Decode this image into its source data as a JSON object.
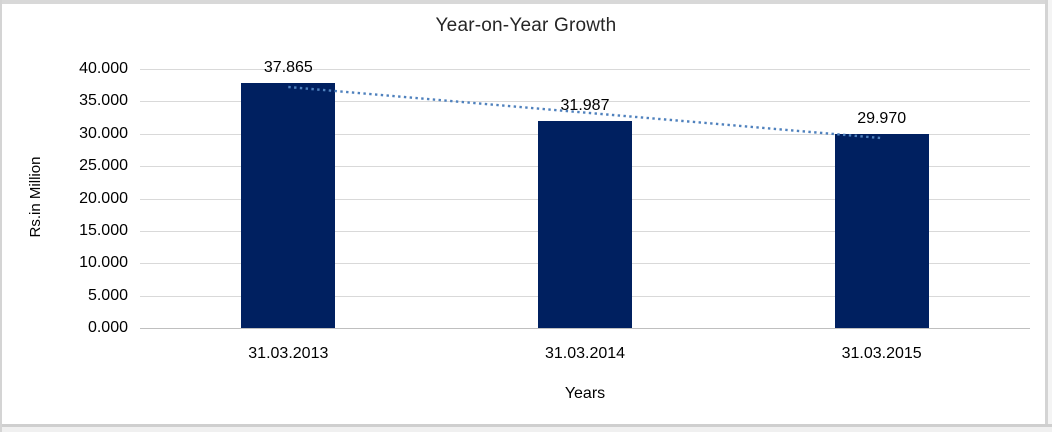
{
  "chart_data": {
    "type": "bar",
    "title": "Year-on-Year Growth",
    "categories": [
      "31.03.2013",
      "31.03.2014",
      "31.03.2015"
    ],
    "values": [
      37.865,
      31.987,
      29.97
    ],
    "data_labels": [
      "37.865",
      "31.987",
      "29.970"
    ],
    "xlabel": "Years",
    "ylabel": "Rs.in Million",
    "ylim": [
      0,
      40
    ],
    "ytick_step": 5,
    "ytick_labels": [
      "0.000",
      "5.000",
      "10.000",
      "15.000",
      "20.000",
      "25.000",
      "30.000",
      "35.000",
      "40.000"
    ],
    "grid": true,
    "legend": false,
    "bar_color": "#002060",
    "gridline_color": "#d9d9d9",
    "axis_line_color": "#bfbfbf",
    "trendline": {
      "type": "linear",
      "style": "dotted",
      "color": "#4f81bd",
      "fitted_values": [
        37.222,
        33.274,
        29.326
      ]
    }
  }
}
